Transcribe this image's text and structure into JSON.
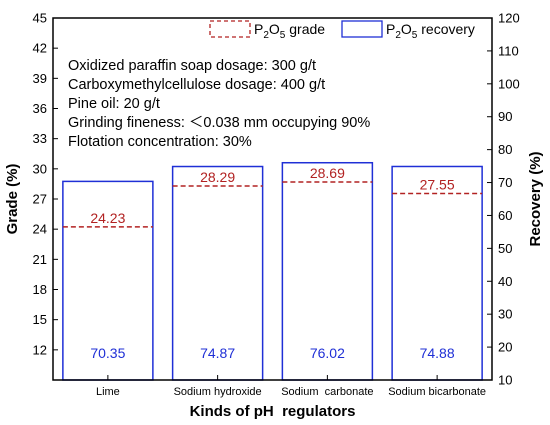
{
  "chart_data": {
    "type": "bar",
    "xlabel": "Kinds of pH  regulators",
    "ylabel_left": "Grade (%)",
    "ylabel_right": "Recovery (%)",
    "categories": [
      "Lime",
      "Sodium hydroxide",
      "Sodium  carbonate",
      "Sodium bicarbonate"
    ],
    "left_axis": {
      "ylim": [
        9,
        45
      ],
      "ticks": [
        12,
        15,
        18,
        21,
        24,
        27,
        30,
        33,
        36,
        39,
        42,
        45
      ]
    },
    "right_axis": {
      "ylim": [
        10,
        120
      ],
      "ticks": [
        10,
        20,
        30,
        40,
        50,
        60,
        70,
        80,
        90,
        100,
        110,
        120
      ]
    },
    "series": [
      {
        "name": "P2O5 recovery",
        "axis": "right",
        "values": [
          70.35,
          74.87,
          76.02,
          74.88
        ],
        "labels": [
          "70.35",
          "74.87",
          "76.02",
          "74.88"
        ]
      },
      {
        "name": "P2O5 grade",
        "axis": "left",
        "values": [
          24.23,
          28.29,
          28.69,
          27.55
        ],
        "labels": [
          "24.23",
          "28.29",
          "28.69",
          "27.55"
        ]
      }
    ],
    "legend": {
      "placement": "top-right",
      "items": [
        {
          "pre": "P",
          "sub": "2",
          "mid": "O",
          "sub2": "5",
          "post": " grade"
        },
        {
          "pre": "P",
          "sub": "2",
          "mid": "O",
          "sub2": "5",
          "post": " recovery"
        }
      ]
    },
    "annotations": [
      "Oxidized paraffin soap dosage: 300 g/t",
      "Carboxymethylcellulose dosage: 400 g/t",
      "Pine oil: 20 g/t",
      "Grinding fineness: ＜0.038 mm occupying 90%",
      "Flotation concentration: 30%"
    ],
    "grid": false,
    "colors": {
      "recovery": "#1f2fd6",
      "grade": "#b22222",
      "axis": "#000000"
    }
  }
}
